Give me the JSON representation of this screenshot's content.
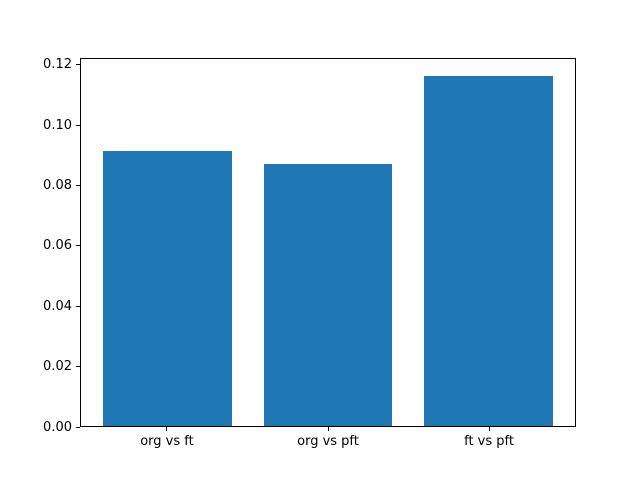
{
  "figure": {
    "background_color": "#ffffff",
    "axes_background_color": "#ffffff",
    "spine_color": "#000000",
    "tick_color": "#000000",
    "text_color": "#000000"
  },
  "chart_data": {
    "type": "bar",
    "title": "",
    "xlabel": "",
    "ylabel": "",
    "categories": [
      "org vs ft",
      "org vs pft",
      "ft vs pft"
    ],
    "values": [
      0.0917,
      0.0874,
      0.1165
    ],
    "bar_color": "#1f77b4",
    "bar_width_fraction": 0.8,
    "xlim": [
      -0.54,
      2.54
    ],
    "ylim": [
      0,
      0.1223
    ],
    "yticks": [
      0,
      0.02,
      0.04,
      0.06,
      0.08,
      0.1,
      0.12
    ],
    "ytick_labels": [
      "0.00",
      "0.02",
      "0.04",
      "0.06",
      "0.08",
      "0.10",
      "0.12"
    ],
    "grid": false,
    "legend_position": "none"
  }
}
